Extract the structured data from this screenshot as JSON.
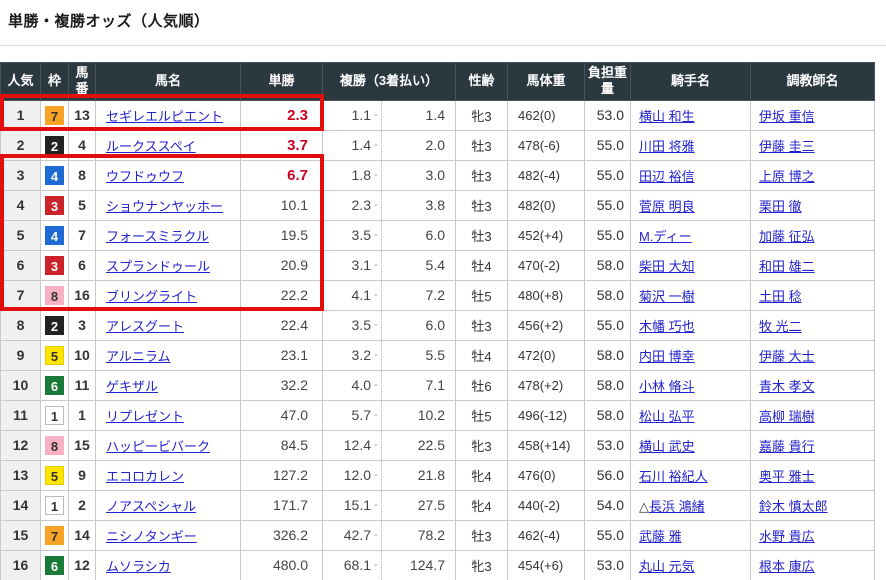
{
  "page": {
    "title": "単勝・複勝オッズ（人気順）"
  },
  "colors": {
    "header_bg": "#2c3840",
    "highlight_red": "#e20d0d",
    "hot_odds_red": "#cc0022",
    "link_blue": "#2323cc",
    "rank_col_bg": "#f0f0f0",
    "frame_colors": {
      "1": {
        "bg": "#ffffff",
        "fg": "#333333",
        "border": "#bbbbbb"
      },
      "2": {
        "bg": "#222222",
        "fg": "#ffffff",
        "border": "#222222"
      },
      "3": {
        "bg": "#cc2229",
        "fg": "#ffffff",
        "border": "#cc2229"
      },
      "4": {
        "bg": "#1e6bd6",
        "fg": "#ffffff",
        "border": "#1e6bd6"
      },
      "5": {
        "bg": "#ffe400",
        "fg": "#333333",
        "border": "#e6cd00"
      },
      "6": {
        "bg": "#1a7a38",
        "fg": "#ffffff",
        "border": "#1a7a38"
      },
      "7": {
        "bg": "#f6a326",
        "fg": "#333333",
        "border": "#f6a326"
      },
      "8": {
        "bg": "#f8b1c4",
        "fg": "#333333",
        "border": "#f8b1c4"
      }
    }
  },
  "table": {
    "columns": [
      {
        "id": "rank",
        "label": "人気"
      },
      {
        "id": "frame",
        "label": "枠"
      },
      {
        "id": "num",
        "label": "馬番"
      },
      {
        "id": "name",
        "label": "馬名"
      },
      {
        "id": "win",
        "label": "単勝"
      },
      {
        "id": "place",
        "label": "複勝（3着払い）"
      },
      {
        "id": "sex",
        "label": "性齢"
      },
      {
        "id": "weight",
        "label": "馬体重"
      },
      {
        "id": "load",
        "label": "負担重量"
      },
      {
        "id": "jockey",
        "label": "騎手名"
      },
      {
        "id": "trainer",
        "label": "調教師名"
      }
    ],
    "rows": [
      {
        "rank": 1,
        "frame": 7,
        "num": 13,
        "name": "セギレエルピエント",
        "win": "2.3",
        "win_hot": true,
        "place_low": "1.1",
        "place_high": "1.4",
        "sex_age": "牝3",
        "weight": "462(0)",
        "load": "53.0",
        "jockey_mark": "",
        "jockey": "横山 和生",
        "trainer": "伊坂 重信"
      },
      {
        "rank": 2,
        "frame": 2,
        "num": 4,
        "name": "ルークススペイ",
        "win": "3.7",
        "win_hot": true,
        "place_low": "1.4",
        "place_high": "2.0",
        "sex_age": "牡3",
        "weight": "478(-6)",
        "load": "55.0",
        "jockey_mark": "",
        "jockey": "川田 将雅",
        "trainer": "伊藤 圭三"
      },
      {
        "rank": 3,
        "frame": 4,
        "num": 8,
        "name": "ウフドゥウフ",
        "win": "6.7",
        "win_hot": true,
        "place_low": "1.8",
        "place_high": "3.0",
        "sex_age": "牡3",
        "weight": "482(-4)",
        "load": "55.0",
        "jockey_mark": "",
        "jockey": "田辺 裕信",
        "trainer": "上原 博之"
      },
      {
        "rank": 4,
        "frame": 3,
        "num": 5,
        "name": "ショウナンヤッホー",
        "win": "10.1",
        "win_hot": false,
        "place_low": "2.3",
        "place_high": "3.8",
        "sex_age": "牡3",
        "weight": "482(0)",
        "load": "55.0",
        "jockey_mark": "",
        "jockey": "菅原 明良",
        "trainer": "栗田 徹"
      },
      {
        "rank": 5,
        "frame": 4,
        "num": 7,
        "name": "フォースミラクル",
        "win": "19.5",
        "win_hot": false,
        "place_low": "3.5",
        "place_high": "6.0",
        "sex_age": "牡3",
        "weight": "452(+4)",
        "load": "55.0",
        "jockey_mark": "",
        "jockey": "M.ディー",
        "trainer": "加藤 征弘"
      },
      {
        "rank": 6,
        "frame": 3,
        "num": 6,
        "name": "スプランドゥール",
        "win": "20.9",
        "win_hot": false,
        "place_low": "3.1",
        "place_high": "5.4",
        "sex_age": "牡4",
        "weight": "470(-2)",
        "load": "58.0",
        "jockey_mark": "",
        "jockey": "柴田 大知",
        "trainer": "和田 雄二"
      },
      {
        "rank": 7,
        "frame": 8,
        "num": 16,
        "name": "ブリングライト",
        "win": "22.2",
        "win_hot": false,
        "place_low": "4.1",
        "place_high": "7.2",
        "sex_age": "牡5",
        "weight": "480(+8)",
        "load": "58.0",
        "jockey_mark": "",
        "jockey": "菊沢 一樹",
        "trainer": "土田 稔"
      },
      {
        "rank": 8,
        "frame": 2,
        "num": 3,
        "name": "アレスグート",
        "win": "22.4",
        "win_hot": false,
        "place_low": "3.5",
        "place_high": "6.0",
        "sex_age": "牡3",
        "weight": "456(+2)",
        "load": "55.0",
        "jockey_mark": "",
        "jockey": "木幡 巧也",
        "trainer": "牧 光二"
      },
      {
        "rank": 9,
        "frame": 5,
        "num": 10,
        "name": "アルニラム",
        "win": "23.1",
        "win_hot": false,
        "place_low": "3.2",
        "place_high": "5.5",
        "sex_age": "牡4",
        "weight": "472(0)",
        "load": "58.0",
        "jockey_mark": "",
        "jockey": "内田 博幸",
        "trainer": "伊藤 大士"
      },
      {
        "rank": 10,
        "frame": 6,
        "num": 11,
        "name": "ゲキザル",
        "win": "32.2",
        "win_hot": false,
        "place_low": "4.0",
        "place_high": "7.1",
        "sex_age": "牡6",
        "weight": "478(+2)",
        "load": "58.0",
        "jockey_mark": "",
        "jockey": "小林 脩斗",
        "trainer": "青木 孝文"
      },
      {
        "rank": 11,
        "frame": 1,
        "num": 1,
        "name": "リプレゼント",
        "win": "47.0",
        "win_hot": false,
        "place_low": "5.7",
        "place_high": "10.2",
        "sex_age": "牡5",
        "weight": "496(-12)",
        "load": "58.0",
        "jockey_mark": "",
        "jockey": "松山 弘平",
        "trainer": "高柳 瑞樹"
      },
      {
        "rank": 12,
        "frame": 8,
        "num": 15,
        "name": "ハッピービバーク",
        "win": "84.5",
        "win_hot": false,
        "place_low": "12.4",
        "place_high": "22.5",
        "sex_age": "牝3",
        "weight": "458(+14)",
        "load": "53.0",
        "jockey_mark": "",
        "jockey": "横山 武史",
        "trainer": "嘉藤 貴行"
      },
      {
        "rank": 13,
        "frame": 5,
        "num": 9,
        "name": "エコロカレン",
        "win": "127.2",
        "win_hot": false,
        "place_low": "12.0",
        "place_high": "21.8",
        "sex_age": "牝4",
        "weight": "476(0)",
        "load": "56.0",
        "jockey_mark": "",
        "jockey": "石川 裕紀人",
        "trainer": "奥平 雅士"
      },
      {
        "rank": 14,
        "frame": 1,
        "num": 2,
        "name": "ノアスペシャル",
        "win": "171.7",
        "win_hot": false,
        "place_low": "15.1",
        "place_high": "27.5",
        "sex_age": "牝4",
        "weight": "440(-2)",
        "load": "54.0",
        "jockey_mark": "△",
        "jockey": "長浜 鴻緒",
        "trainer": "鈴木 慎太郎"
      },
      {
        "rank": 15,
        "frame": 7,
        "num": 14,
        "name": "ニシノタンギー",
        "win": "326.2",
        "win_hot": false,
        "place_low": "42.7",
        "place_high": "78.2",
        "sex_age": "牡3",
        "weight": "462(-4)",
        "load": "55.0",
        "jockey_mark": "",
        "jockey": "武藤 雅",
        "trainer": "水野 貴広"
      },
      {
        "rank": 16,
        "frame": 6,
        "num": 12,
        "name": "ムソラシカ",
        "win": "480.0",
        "win_hot": false,
        "place_low": "68.1",
        "place_high": "124.7",
        "sex_age": "牝3",
        "weight": "454(+6)",
        "load": "53.0",
        "jockey_mark": "",
        "jockey": "丸山 元気",
        "trainer": "根本 康広"
      }
    ]
  }
}
